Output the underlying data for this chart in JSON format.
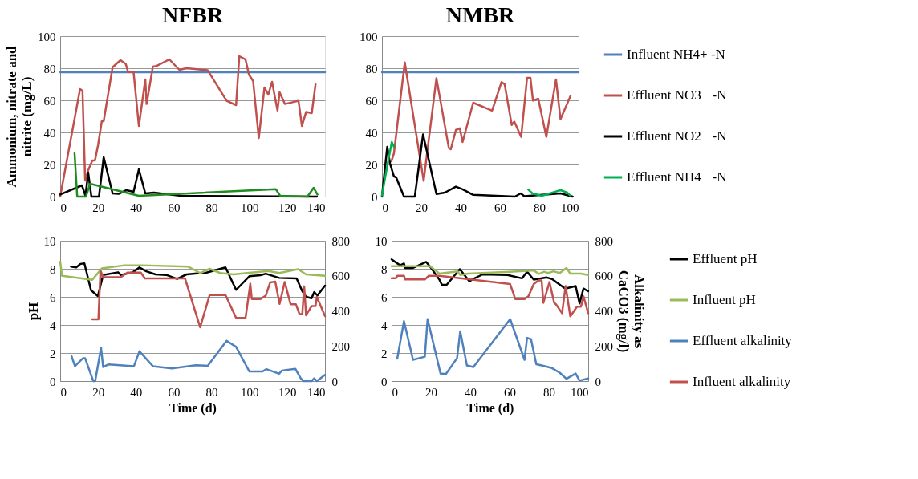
{
  "chart_data": [
    {
      "type": "line",
      "title": "NFBR",
      "ylabel": "Ammonium, nitrate and nitrite (mg/L)",
      "xlim": [
        0,
        140
      ],
      "xticks": [
        0,
        20,
        40,
        60,
        80,
        100,
        120,
        140
      ],
      "ylim": [
        0,
        100
      ],
      "yticks": [
        0,
        20,
        40,
        60,
        80,
        100
      ],
      "grid": "y",
      "legend": false,
      "series": [
        {
          "color": "#4f81bd",
          "x": [
            0,
            140
          ],
          "values": [
            77.5,
            77.5
          ]
        },
        {
          "color": "#c0504d",
          "x": [
            0,
            10.5,
            11.8,
            13.2,
            15,
            17,
            18.4,
            20,
            22,
            23,
            27.7,
            31.9,
            34.7,
            35.9,
            38.8,
            41.6,
            45,
            45.7,
            49,
            51,
            57.7,
            63,
            66.8,
            78,
            88,
            93,
            94.7,
            98,
            99.8,
            102,
            105,
            108,
            110,
            112,
            114.9,
            116,
            118.8,
            126,
            127.8,
            130,
            133,
            135
          ],
          "values": [
            0,
            67,
            66,
            10,
            17,
            22.5,
            22.5,
            32,
            47,
            47,
            80.6,
            85,
            82.6,
            77.6,
            77.6,
            44,
            73,
            57.7,
            81,
            81.4,
            85.5,
            79,
            80,
            78.7,
            59.7,
            57,
            87.5,
            85.4,
            76,
            72,
            36.5,
            68,
            63.5,
            71.5,
            53.6,
            65,
            57.7,
            59.7,
            44,
            52.7,
            52,
            70
          ]
        },
        {
          "color": "#000000",
          "x": [
            0,
            11.5,
            13.4,
            14.8,
            16.5,
            20.5,
            23,
            27.7,
            30.9,
            35,
            38.8,
            41.6,
            45,
            49.5,
            64,
            135.7
          ],
          "values": [
            1.3,
            7,
            0.5,
            15,
            0,
            0,
            24.5,
            2,
            1.7,
            4,
            3,
            17,
            2,
            2.5,
            0.5,
            0
          ]
        },
        {
          "color": "#1e8c1e",
          "x": [
            7.6,
            9,
            13.6,
            15.8,
            41.6,
            114,
            116.3,
            130.7,
            134,
            136
          ],
          "values": [
            27,
            0,
            0,
            8,
            0.5,
            4.6,
            0.5,
            0,
            5.5,
            1.3
          ]
        }
      ]
    },
    {
      "type": "line",
      "title": "NMBR",
      "xlim": [
        0,
        100
      ],
      "xticks": [
        0,
        20,
        40,
        60,
        80,
        100
      ],
      "ylim": [
        0,
        100
      ],
      "yticks": [
        0,
        20,
        40,
        60,
        80,
        100
      ],
      "grid": "y",
      "legend": "right",
      "series": [
        {
          "name": "Influent NH4+ -N",
          "color": "#4f81bd",
          "x": [
            0,
            100
          ],
          "values": [
            77.5,
            77.5
          ]
        },
        {
          "name": "Effluent  NO3+ -N",
          "color": "#c0504d",
          "x": [
            4.8,
            6.1,
            11.6,
            21.2,
            27.7,
            34,
            35,
            37.6,
            39.6,
            41,
            46.4,
            56,
            60.8,
            62.4,
            66,
            67.3,
            70.8,
            73.8,
            75.5,
            76.8,
            79.5,
            83.6,
            88.5,
            90.8,
            95.9
          ],
          "values": [
            22,
            27,
            83.6,
            9.8,
            73.8,
            30.3,
            29.5,
            41.5,
            42.6,
            34,
            58.5,
            53.6,
            71.3,
            70,
            44.6,
            46.7,
            37.2,
            74,
            74,
            59.8,
            61,
            37.2,
            73,
            48.3,
            62.8
          ]
        },
        {
          "name": "Effluent NO2+ -N",
          "color": "#000000",
          "x": [
            0,
            2.7,
            4.1,
            6.1,
            7.2,
            11.2,
            16.7,
            20.9,
            27.7,
            32,
            37.6,
            41,
            46.4,
            67.6,
            70.6,
            72.4,
            90.8,
            97
          ],
          "values": [
            0,
            31,
            20.5,
            12.6,
            12,
            0,
            0,
            38.8,
            1.6,
            2.5,
            6.2,
            4.6,
            1.1,
            0,
            2,
            0.3,
            2,
            0
          ]
        },
        {
          "name": "Effluent NH4+ -N",
          "color": "#00b050",
          "x": [
            0,
            3.1,
            5,
            6.1,
            40,
            74.4,
            76.5,
            81.3,
            90.8,
            94.3,
            95.6
          ],
          "values": [
            0.8,
            21.8,
            34,
            31,
            null,
            4.4,
            2,
            0.5,
            4,
            2.5,
            0.8
          ]
        }
      ]
    },
    {
      "type": "line",
      "ylabel": "pH",
      "xlabel": "Time (d)",
      "xlim": [
        0,
        140
      ],
      "xticks": [
        0,
        20,
        40,
        60,
        80,
        100,
        120,
        140
      ],
      "ylim": [
        0,
        10
      ],
      "yticks": [
        0,
        2,
        4,
        6,
        8,
        10
      ],
      "y2lim": [
        0,
        800
      ],
      "y2ticks": [
        0,
        200,
        400,
        600,
        800
      ],
      "grid": "y",
      "legend": false,
      "series": [
        {
          "color": "#000000",
          "x": [
            5.7,
            8.5,
            10.7,
            12.8,
            16.3,
            19.9,
            22.7,
            30.6,
            32,
            38.4,
            41.9,
            45.5,
            50.4,
            56.1,
            61.8,
            66.8,
            77.4,
            87.4,
            93,
            100,
            105.9,
            108.7,
            115.8,
            125,
            127.9,
            130,
            132.9,
            134.3,
            136,
            140
          ],
          "values": [
            8.16,
            8.1,
            8.35,
            8.39,
            6.47,
            6.06,
            7.56,
            7.75,
            7.56,
            7.75,
            8.1,
            7.82,
            7.6,
            7.56,
            7.28,
            7.6,
            7.73,
            8.1,
            6.5,
            7.47,
            7.54,
            7.65,
            7.35,
            7.32,
            6.43,
            6,
            5.9,
            6.34,
            6.1,
            6.8
          ]
        },
        {
          "color": "#9bbb59",
          "x": [
            0,
            1,
            17,
            22,
            34,
            43.3,
            67.5,
            74,
            79,
            84.6,
            91.7,
            98.8,
            110,
            115.8,
            125.8,
            130,
            140
          ],
          "values": [
            8.5,
            7.5,
            7.22,
            8.03,
            8.25,
            8.25,
            8.16,
            7.7,
            8.0,
            7.7,
            7.6,
            7.7,
            7.84,
            7.7,
            7.97,
            7.6,
            7.5
          ]
        },
        {
          "color": "#4f81bd",
          "axis": "y2",
          "x": [
            6,
            7.8,
            12,
            13.2,
            17.5,
            18.5,
            21.6,
            22.7,
            25.6,
            39,
            41.9,
            49,
            59,
            71.8,
            78,
            88,
            93,
            100,
            107,
            109,
            115.8,
            117.2,
            124.3,
            127.2,
            128.6,
            132.9,
            134.3,
            135.7,
            140
          ],
          "values": [
            142,
            85,
            130,
            130,
            0,
            0,
            190,
            80,
            95,
            85,
            170,
            85,
            72,
            90,
            87,
            230,
            195,
            55,
            55,
            68,
            42,
            60,
            70,
            15,
            0,
            0,
            15,
            0,
            35
          ]
        },
        {
          "color": "#c0504d",
          "axis": "y2",
          "x": [
            17,
            20.2,
            21.3,
            22.7,
            32,
            35.5,
            42.6,
            44.8,
            66,
            74,
            79,
            87.4,
            93,
            98,
            100.5,
            101.3,
            105.9,
            108.7,
            111,
            113.7,
            116,
            118.7,
            121.8,
            124.6,
            126.5,
            128,
            129,
            130,
            132.9,
            135,
            135.7,
            140
          ],
          "values": [
            352,
            352,
            630,
            592,
            592,
            618,
            618,
            585,
            585,
            307,
            490,
            490,
            360,
            360,
            555,
            468,
            468,
            487,
            562,
            567,
            440,
            565,
            438,
            438,
            382,
            382,
            540,
            375,
            427,
            427,
            480,
            370
          ]
        }
      ]
    },
    {
      "type": "line",
      "xlabel": "Time (d)",
      "y2label": "Alkalinity as CaCO3 (mg/l)",
      "xlim": [
        0,
        100
      ],
      "xticks": [
        0,
        20,
        40,
        60,
        80,
        100
      ],
      "ylim": [
        0,
        10
      ],
      "yticks": [
        0,
        2,
        4,
        6,
        8,
        10
      ],
      "y2lim": [
        0,
        800
      ],
      "y2ticks": [
        0,
        200,
        400,
        600,
        800
      ],
      "grid": "y",
      "legend": "right",
      "series": [
        {
          "name": "Effluent pH",
          "color": "#000000",
          "x": [
            0,
            4.3,
            6.3,
            6.9,
            10.9,
            17.6,
            19.6,
            24.3,
            25.6,
            28,
            34.7,
            39.6,
            40.9,
            46.3,
            58.9,
            66.3,
            68.9,
            72.3,
            78.9,
            81.6,
            88.3,
            93.6,
            95.6,
            97.6,
            100
          ],
          "values": [
            8.67,
            8.25,
            8.38,
            8.06,
            8.06,
            8.49,
            8.15,
            7.23,
            6.86,
            6.86,
            7.97,
            7.1,
            7.23,
            7.6,
            7.56,
            7.32,
            7.79,
            7.23,
            7.38,
            7.27,
            6.59,
            6.77,
            5.53,
            6.59,
            6.4
          ]
        },
        {
          "name": "Influent pH",
          "color": "#9bbb59",
          "x": [
            0,
            19.6,
            24.3,
            33.6,
            35,
            38.9,
            60.3,
            72.3,
            74.9,
            77.6,
            79.6,
            82.3,
            85.6,
            88.9,
            90.9,
            96.2,
            100
          ],
          "values": [
            8.19,
            8.19,
            7.66,
            7.82,
            7.56,
            7.66,
            7.79,
            7.88,
            7.64,
            7.79,
            7.7,
            7.82,
            7.7,
            8.06,
            7.66,
            7.66,
            7.56
          ]
        },
        {
          "name": "Effluent alkalinity",
          "color": "#4f81bd",
          "axis": "y2",
          "x": [
            2.9,
            6.3,
            10.9,
            16.9,
            18.3,
            24.9,
            27.6,
            33.3,
            34.9,
            38.3,
            41.6,
            60.3,
            67.6,
            68.9,
            70.9,
            73.6,
            76.3,
            81.6,
            85.6,
            88.9,
            93.6,
            95.6,
            100
          ],
          "values": [
            128,
            342,
            121,
            139,
            353,
            43,
            40,
            131,
            283,
            89,
            80,
            353,
            121,
            246,
            239,
            96,
            89,
            74,
            47,
            13,
            43,
            3,
            15
          ]
        },
        {
          "name": "Influent alkalinity",
          "color": "#c0504d",
          "axis": "y2",
          "x": [
            0,
            2.3,
            2.9,
            6.3,
            6.9,
            16.9,
            18.9,
            24.3,
            60.3,
            62.9,
            67.6,
            69.6,
            72.3,
            74.7,
            76.3,
            77.2,
            80.3,
            82.7,
            83.6,
            86.7,
            88.5,
            90.9,
            94.3,
            96.3,
            97.6,
            100
          ],
          "values": [
            586,
            586,
            600,
            600,
            579,
            579,
            600,
            600,
            553,
            468,
            468,
            483,
            553,
            574,
            574,
            446,
            564,
            446,
            438,
            387,
            542,
            369,
            424,
            424,
            483,
            387
          ]
        }
      ]
    }
  ]
}
